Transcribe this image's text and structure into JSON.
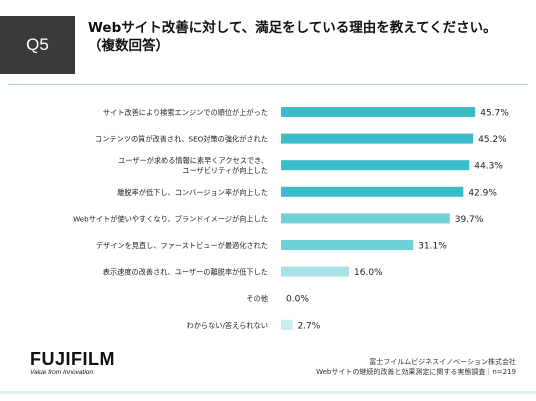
{
  "question_label": "Q5",
  "title_line1": "Webサイト改善に対して、満足をしている理由を教えてください。",
  "title_line2": "（複数回答）",
  "brand": {
    "name": "FUJIFILM",
    "tagline": "Value from Innovation"
  },
  "source_line1": "富士フイルムビジネスイノベーション株式会社",
  "source_line2": "Webサイトの継続的改善と効果測定に関する実態調査｜n=219",
  "colors": {
    "bar_dark": "#3cbcc8",
    "bar_mid": "#6fd0d8",
    "bar_light": "#a9e1e6",
    "bar_pale": "#c6ecef"
  },
  "chart_data": {
    "type": "bar",
    "orientation": "horizontal",
    "categories": [
      [
        "サイト改善により検索エンジンでの順位が上がった"
      ],
      [
        "コンテンツの質が改善され、SEO対策の強化がされた"
      ],
      [
        "ユーザーが求める情報に素早くアクセスでき、",
        "ユーザビリティが向上した"
      ],
      [
        "離脱率が低下し、コンバージョン率が向上した"
      ],
      [
        "Webサイトが使いやすくなり、ブランドイメージが向上した"
      ],
      [
        "デザインを見直し、ファーストビューが最適化された"
      ],
      [
        "表示速度の改善され、ユーザーの離脱率が低下した"
      ],
      [
        "その他"
      ],
      [
        "わからない/答えられない"
      ]
    ],
    "values": [
      45.7,
      45.2,
      44.3,
      42.9,
      39.7,
      31.1,
      16.0,
      0.0,
      2.7
    ],
    "value_labels": [
      "45.7%",
      "45.2%",
      "44.3%",
      "42.9%",
      "39.7%",
      "31.1%",
      "16.0%",
      "0.0%",
      "2.7%"
    ],
    "xlim": [
      0,
      50
    ],
    "grid": false,
    "legend": "none"
  }
}
